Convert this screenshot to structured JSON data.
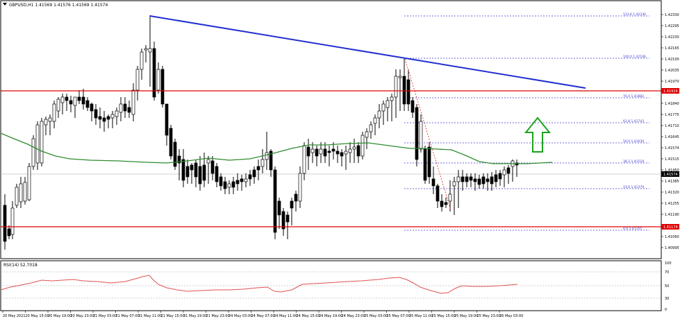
{
  "header": {
    "symbol_line": "GBPUSD,H1  1.41569 1.41576 1.41569 1.41574"
  },
  "colors": {
    "up_candle": "#ffffff",
    "down_candle": "#000000",
    "ma_line": "#2e8b2e",
    "trendline": "#1f2fd0",
    "hline": "#e00000",
    "fib": "#3a3ad0",
    "rsi_line": "#e05050",
    "arrow": "#1aa31a",
    "label_bg": "#e00000"
  },
  "price_axis": {
    "ticks": [
      "1.42330",
      "1.42295",
      "1.42230",
      "1.42165",
      "1.42100",
      "1.42035",
      "1.41970",
      "1.41905",
      "1.41840",
      "1.41775",
      "1.41710",
      "1.41645",
      "1.41574",
      "1.41515",
      "1.41450",
      "1.41385",
      "1.41320",
      "1.41255",
      "1.41190",
      "1.41125",
      "1.41060",
      "1.40995"
    ],
    "marker_labels": [
      {
        "text": "1.41924",
        "color": "#e00000"
      },
      {
        "text": "1.41574",
        "color": "#000000"
      },
      {
        "text": "1.41174",
        "color": "#e00000"
      }
    ]
  },
  "fibonacci": {
    "levels": [
      {
        "label": "123.6 1.42330"
      },
      {
        "label": "100.0 1.42106"
      },
      {
        "label": "76.4 1.41882"
      },
      {
        "label": "61.8 1.41743"
      },
      {
        "label": "50.0 1.41630"
      },
      {
        "label": "38.2 1.41518"
      },
      {
        "label": "23.6 1.41379"
      },
      {
        "label": "0.0 1.41155"
      }
    ]
  },
  "rsi": {
    "title": "RSI(14) 52.7018",
    "ticks": [
      "100",
      "70",
      "50",
      "30",
      "0"
    ]
  },
  "time_axis": {
    "labels": [
      "20 May 2021",
      "20 May 15:00",
      "20 May 19:00",
      "20 May 23:00",
      "21 May 03:00",
      "21 May 07:00",
      "21 May 11:00",
      "21 May 15:00",
      "21 May 19:00",
      "21 May 23:00",
      "24 May 03:00",
      "24 May 07:00",
      "24 May 11:00",
      "24 May 15:00",
      "24 May 19:00",
      "24 May 23:00",
      "25 May 03:00",
      "25 May 07:00",
      "25 May 11:00",
      "25 May 15:00",
      "25 May 19:00",
      "25 May 23:00",
      "26 May 03:00"
    ]
  }
}
